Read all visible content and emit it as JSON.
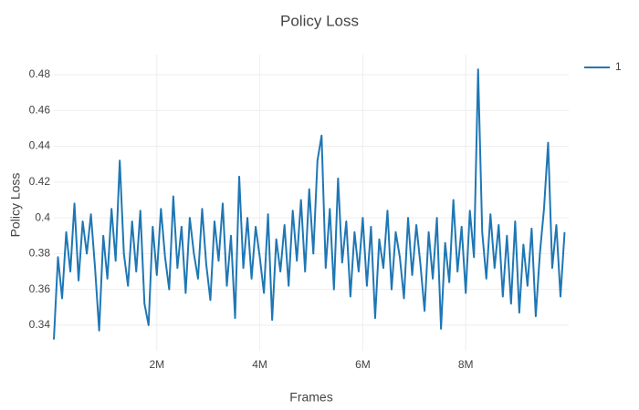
{
  "chart_data": {
    "type": "line",
    "title": "Policy Loss",
    "xlabel": "Frames",
    "ylabel": "Policy Loss",
    "x": [
      0,
      80000,
      160000,
      240000,
      320000,
      400000,
      480000,
      560000,
      640000,
      720000,
      800000,
      880000,
      960000,
      1040000,
      1120000,
      1200000,
      1280000,
      1360000,
      1440000,
      1520000,
      1600000,
      1680000,
      1760000,
      1840000,
      1920000,
      2000000,
      2080000,
      2160000,
      2240000,
      2320000,
      2400000,
      2480000,
      2560000,
      2640000,
      2720000,
      2800000,
      2880000,
      2960000,
      3040000,
      3120000,
      3200000,
      3280000,
      3360000,
      3440000,
      3520000,
      3600000,
      3680000,
      3760000,
      3840000,
      3920000,
      4000000,
      4080000,
      4160000,
      4240000,
      4320000,
      4400000,
      4480000,
      4560000,
      4640000,
      4720000,
      4800000,
      4880000,
      4960000,
      5040000,
      5120000,
      5200000,
      5280000,
      5360000,
      5440000,
      5520000,
      5600000,
      5680000,
      5760000,
      5840000,
      5920000,
      6000000,
      6080000,
      6160000,
      6240000,
      6320000,
      6400000,
      6480000,
      6560000,
      6640000,
      6720000,
      6800000,
      6880000,
      6960000,
      7040000,
      7120000,
      7200000,
      7280000,
      7360000,
      7440000,
      7520000,
      7600000,
      7680000,
      7760000,
      7840000,
      7920000,
      8000000,
      8080000,
      8160000,
      8240000,
      8320000,
      8400000,
      8480000,
      8560000,
      8640000,
      8720000,
      8800000,
      8880000,
      8960000,
      9040000,
      9120000,
      9200000,
      9280000,
      9360000,
      9440000,
      9520000,
      9600000,
      9680000,
      9760000,
      9840000,
      9920000
    ],
    "series": [
      {
        "name": "1",
        "color": "#1f77b4",
        "values": [
          0.332,
          0.378,
          0.355,
          0.392,
          0.37,
          0.408,
          0.365,
          0.398,
          0.38,
          0.402,
          0.372,
          0.337,
          0.39,
          0.366,
          0.405,
          0.376,
          0.432,
          0.38,
          0.362,
          0.398,
          0.37,
          0.404,
          0.352,
          0.34,
          0.395,
          0.368,
          0.405,
          0.378,
          0.36,
          0.412,
          0.372,
          0.395,
          0.358,
          0.4,
          0.38,
          0.366,
          0.405,
          0.374,
          0.354,
          0.398,
          0.376,
          0.408,
          0.362,
          0.39,
          0.344,
          0.423,
          0.372,
          0.4,
          0.366,
          0.395,
          0.378,
          0.358,
          0.402,
          0.343,
          0.388,
          0.37,
          0.396,
          0.362,
          0.404,
          0.376,
          0.41,
          0.37,
          0.416,
          0.38,
          0.432,
          0.446,
          0.372,
          0.405,
          0.36,
          0.422,
          0.375,
          0.398,
          0.356,
          0.392,
          0.37,
          0.4,
          0.362,
          0.395,
          0.344,
          0.388,
          0.372,
          0.404,
          0.36,
          0.392,
          0.378,
          0.355,
          0.4,
          0.368,
          0.396,
          0.374,
          0.348,
          0.392,
          0.366,
          0.4,
          0.338,
          0.386,
          0.364,
          0.41,
          0.37,
          0.395,
          0.358,
          0.404,
          0.378,
          0.483,
          0.392,
          0.366,
          0.402,
          0.372,
          0.396,
          0.356,
          0.39,
          0.352,
          0.398,
          0.347,
          0.385,
          0.362,
          0.394,
          0.345,
          0.38,
          0.405,
          0.442,
          0.372,
          0.396,
          0.356,
          0.392
        ]
      }
    ],
    "xlim": [
      0,
      10000000
    ],
    "xticks": [
      {
        "value": 2000000,
        "label": "2M"
      },
      {
        "value": 4000000,
        "label": "4M"
      },
      {
        "value": 6000000,
        "label": "6M"
      },
      {
        "value": 8000000,
        "label": "8M"
      }
    ],
    "ylim": [
      0.3257,
      0.4912
    ],
    "yticks": [
      0.34,
      0.36,
      0.38,
      0.4,
      0.42,
      0.44,
      0.46,
      0.48
    ],
    "grid": true,
    "legend": "top-right"
  }
}
